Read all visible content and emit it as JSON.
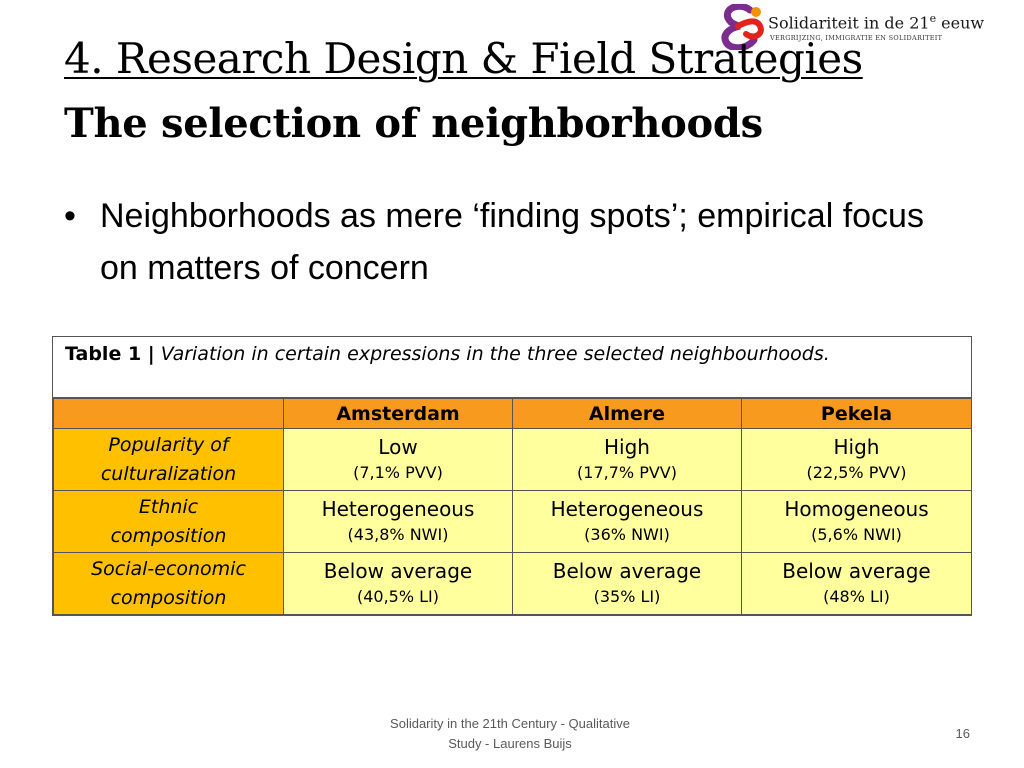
{
  "logo": {
    "title": "Solidariteit in de 21",
    "title_sup": "e",
    "title_end": " eeuw",
    "subtitle": "vergrijzing, immigratie en solidariteit"
  },
  "slide": {
    "title_line1": "4. Research Design & Field Strategies",
    "title_line2": "The selection of neighborhoods",
    "bullet_symbol": "•",
    "bullet_text": "Neighborhoods as mere ‘finding spots’; empirical focus on matters of concern"
  },
  "table": {
    "caption_label": "Table 1 |",
    "caption_text": "Variation in certain expressions in the three selected neighbourhoods.",
    "columns": [
      "Amsterdam",
      "Almere",
      "Pekela"
    ],
    "rows": [
      {
        "label_line1": "Popularity of",
        "label_line2": "culturalization",
        "cells": [
          {
            "main": "Low",
            "sub": "(7,1% PVV)"
          },
          {
            "main": "High",
            "sub": "(17,7% PVV)"
          },
          {
            "main": "High",
            "sub": "(22,5% PVV)"
          }
        ]
      },
      {
        "label_line1": "Ethnic",
        "label_line2": "composition",
        "cells": [
          {
            "main": "Heterogeneous",
            "sub": "(43,8% NWI)"
          },
          {
            "main": "Heterogeneous",
            "sub": "(36% NWI)"
          },
          {
            "main": "Homogeneous",
            "sub": "(5,6% NWI)"
          }
        ]
      },
      {
        "label_line1": "Social-economic",
        "label_line2": "composition",
        "cells": [
          {
            "main": "Below average",
            "sub": "(40,5% LI)"
          },
          {
            "main": "Below average",
            "sub": "(35% LI)"
          },
          {
            "main": "Below average",
            "sub": "(48% LI)"
          }
        ]
      }
    ]
  },
  "footer": {
    "line1": "Solidarity in the 21th Century - Qualitative",
    "line2": "Study - Laurens Buijs",
    "page_number": "16"
  },
  "colors": {
    "header_orange": "#f79a1e",
    "label_gold": "#ffc000",
    "cell_yellow": "#ffff9e",
    "logo_red": "#e2231a",
    "logo_purple": "#7b2d8e",
    "logo_orange": "#f39200"
  }
}
